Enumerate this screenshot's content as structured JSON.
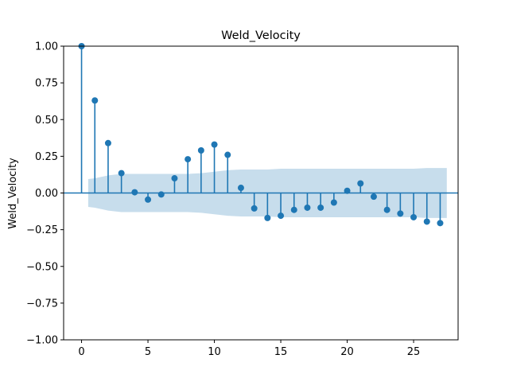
{
  "chart_data": {
    "type": "stem",
    "title": "Weld_Velocity",
    "xlabel": "",
    "ylabel": "Weld_Velocity",
    "xlim": [
      -1.35,
      28.35
    ],
    "ylim": [
      -1.0,
      1.0
    ],
    "xticks": [
      0,
      5,
      10,
      15,
      20,
      25
    ],
    "yticks": [
      -1.0,
      -0.75,
      -0.5,
      -0.25,
      0.0,
      0.25,
      0.5,
      0.75,
      1.0
    ],
    "ytick_labels": [
      "−1.00",
      "−0.75",
      "−0.50",
      "−0.25",
      "0.00",
      "0.25",
      "0.50",
      "0.75",
      "1.00"
    ],
    "xtick_labels": [
      "0",
      "5",
      "10",
      "15",
      "20",
      "25"
    ],
    "grid": false,
    "colors": {
      "stem": "#1f77b4",
      "band": "#1f77b4",
      "zero_line": "#1f77b4"
    },
    "lags": [
      0,
      1,
      2,
      3,
      4,
      5,
      6,
      7,
      8,
      9,
      10,
      11,
      12,
      13,
      14,
      15,
      16,
      17,
      18,
      19,
      20,
      21,
      22,
      23,
      24,
      25,
      26,
      27
    ],
    "values": [
      1.0,
      0.63,
      0.34,
      0.135,
      0.005,
      -0.045,
      -0.01,
      0.1,
      0.23,
      0.29,
      0.33,
      0.26,
      0.035,
      -0.105,
      -0.17,
      -0.155,
      -0.115,
      -0.1,
      -0.1,
      -0.065,
      0.015,
      0.065,
      -0.025,
      -0.115,
      -0.14,
      -0.165,
      -0.195,
      -0.205
    ],
    "confidence_band": {
      "x": [
        0.5,
        1,
        2,
        3,
        4,
        5,
        6,
        7,
        8,
        9,
        10,
        11,
        12,
        13,
        14,
        15,
        16,
        17,
        18,
        19,
        20,
        21,
        22,
        23,
        24,
        25,
        26,
        27,
        27.5
      ],
      "upper": [
        0.095,
        0.1,
        0.12,
        0.13,
        0.13,
        0.13,
        0.13,
        0.13,
        0.13,
        0.135,
        0.145,
        0.155,
        0.16,
        0.16,
        0.16,
        0.165,
        0.165,
        0.165,
        0.165,
        0.165,
        0.165,
        0.165,
        0.165,
        0.165,
        0.165,
        0.165,
        0.17,
        0.17,
        0.17
      ],
      "lower": [
        -0.095,
        -0.1,
        -0.12,
        -0.13,
        -0.13,
        -0.13,
        -0.13,
        -0.13,
        -0.13,
        -0.135,
        -0.145,
        -0.155,
        -0.16,
        -0.16,
        -0.16,
        -0.165,
        -0.165,
        -0.165,
        -0.165,
        -0.165,
        -0.165,
        -0.165,
        -0.165,
        -0.165,
        -0.165,
        -0.165,
        -0.17,
        -0.17,
        -0.17
      ]
    }
  }
}
